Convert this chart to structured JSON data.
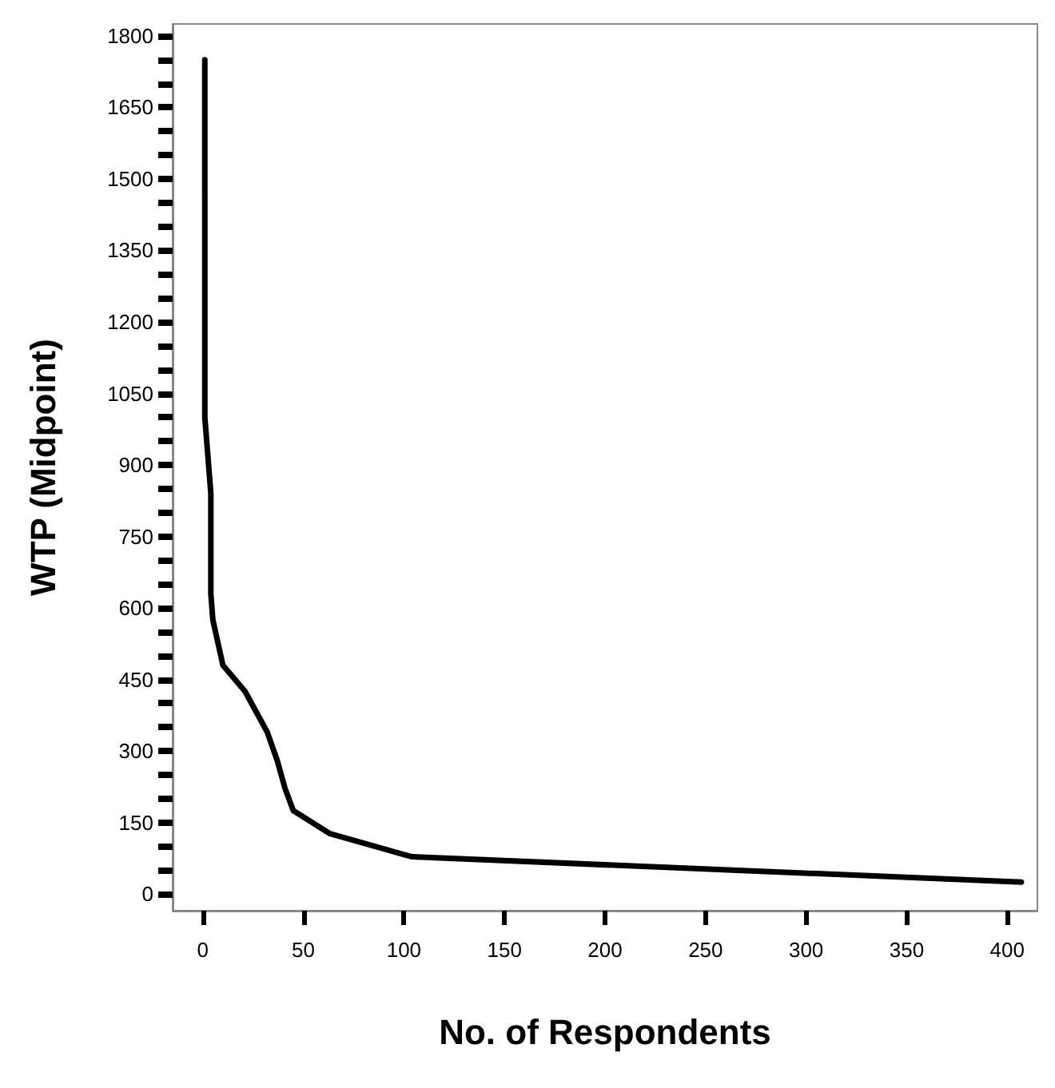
{
  "chart_data": {
    "type": "line",
    "xlabel": "No. of Respondents",
    "ylabel": "WTP (Midpoint)",
    "x": [
      1,
      1,
      4,
      4,
      5,
      10,
      21,
      32,
      37,
      41,
      45,
      63,
      104,
      407
    ],
    "series": [
      {
        "color": "#000000",
        "values": [
          1750,
          1000,
          840,
          630,
          575,
          480,
          425,
          340,
          280,
          220,
          175,
          127,
          78,
          25
        ]
      }
    ],
    "xlim": [
      -15,
      415
    ],
    "ylim": [
      -35,
      1825
    ],
    "xticks": [
      0,
      50,
      100,
      150,
      200,
      250,
      300,
      350,
      400
    ],
    "yticks": [
      0,
      {
        "value": 50,
        "label": null
      },
      {
        "value": 100,
        "label": null
      },
      150,
      {
        "value": 200,
        "label": null
      },
      {
        "value": 250,
        "label": null
      },
      300,
      {
        "value": 350,
        "label": null
      },
      {
        "value": 400,
        "label": null
      },
      450,
      {
        "value": 500,
        "label": null
      },
      {
        "value": 550,
        "label": null
      },
      600,
      {
        "value": 650,
        "label": null
      },
      {
        "value": 700,
        "label": null
      },
      750,
      {
        "value": 800,
        "label": null
      },
      {
        "value": 850,
        "label": null
      },
      900,
      {
        "value": 950,
        "label": null
      },
      {
        "value": 1000,
        "label": null
      },
      1050,
      {
        "value": 1100,
        "label": null
      },
      {
        "value": 1150,
        "label": null
      },
      1200,
      {
        "value": 1250,
        "label": null
      },
      {
        "value": 1300,
        "label": null
      },
      1350,
      {
        "value": 1400,
        "label": null
      },
      {
        "value": 1450,
        "label": null
      },
      1500,
      {
        "value": 1550,
        "label": null
      },
      {
        "value": 1600,
        "label": null
      },
      1650,
      {
        "value": 1700,
        "label": null
      },
      {
        "value": 1750,
        "label": null
      },
      1800
    ],
    "grid": false,
    "marker": "none",
    "line_style": "solid"
  }
}
